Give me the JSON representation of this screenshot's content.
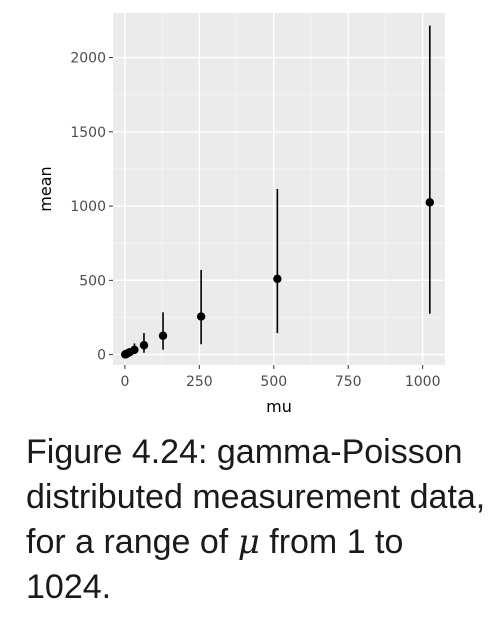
{
  "chart_data": {
    "type": "scatter",
    "xlabel": "mu",
    "ylabel": "mean",
    "xlim": [
      -40,
      1075
    ],
    "ylim": [
      -70,
      2300
    ],
    "x_ticks": [
      0,
      250,
      500,
      750,
      1000
    ],
    "x_tick_labels": [
      "0",
      "250",
      "500",
      "750",
      "1000"
    ],
    "y_ticks": [
      0,
      500,
      1000,
      1500,
      2000
    ],
    "y_tick_labels": [
      "0",
      "500",
      "1000",
      "1500",
      "2000"
    ],
    "grid": true,
    "points": [
      {
        "x": 1,
        "mean": 1,
        "lo": 0,
        "hi": 3
      },
      {
        "x": 2,
        "mean": 2,
        "lo": 0,
        "hi": 6
      },
      {
        "x": 4,
        "mean": 4,
        "lo": 0,
        "hi": 10
      },
      {
        "x": 8,
        "mean": 8,
        "lo": 1,
        "hi": 20
      },
      {
        "x": 16,
        "mean": 16,
        "lo": 2,
        "hi": 40
      },
      {
        "x": 32,
        "mean": 32,
        "lo": 5,
        "hi": 75
      },
      {
        "x": 64,
        "mean": 63,
        "lo": 12,
        "hi": 145
      },
      {
        "x": 128,
        "mean": 127,
        "lo": 33,
        "hi": 285
      },
      {
        "x": 256,
        "mean": 256,
        "lo": 70,
        "hi": 570
      },
      {
        "x": 512,
        "mean": 510,
        "lo": 145,
        "hi": 1115
      },
      {
        "x": 1024,
        "mean": 1025,
        "lo": 275,
        "hi": 2215
      }
    ],
    "colors": {
      "panel": "#ebebeb",
      "grid_major": "#ffffff",
      "grid_minor": "#f5f5f5",
      "marks": "#000000"
    }
  },
  "caption": {
    "part1": "Figure 4.24: gamma-Poisson distributed measurement data, for a range of ",
    "symbol": "μ",
    "part2": " from 1 to 1024."
  }
}
